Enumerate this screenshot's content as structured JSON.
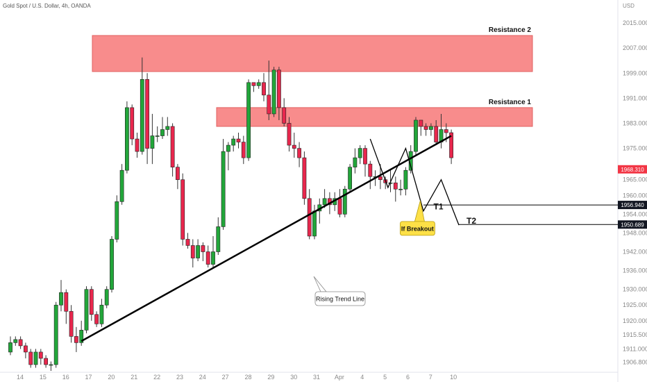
{
  "chart_data": {
    "type": "candlestick",
    "title": "Gold Spot / U.S. Dollar, 4h, OANDA",
    "currency": "USD",
    "ylim": [
      1904,
      2021
    ],
    "y_ticks": [
      "2015.000",
      "2007.000",
      "1999.000",
      "1991.000",
      "1983.000",
      "1975.000",
      "1965.000",
      "1960.000",
      "1954.000",
      "1948.000",
      "1942.000",
      "1936.000",
      "1930.000",
      "1925.000",
      "1920.000",
      "1915.500",
      "1911.000",
      "1906.800"
    ],
    "y_tick_values": [
      2015,
      2007,
      1999,
      1991,
      1983,
      1975,
      1965,
      1960,
      1954,
      1948,
      1942,
      1936,
      1930,
      1925,
      1920,
      1915.5,
      1911,
      1906.8
    ],
    "x_ticks": [
      {
        "label": "14",
        "i": 0
      },
      {
        "label": "15",
        "i": 4.5
      },
      {
        "label": "16",
        "i": 9
      },
      {
        "label": "17",
        "i": 13.5
      },
      {
        "label": "20",
        "i": 18
      },
      {
        "label": "21",
        "i": 22.5
      },
      {
        "label": "22",
        "i": 27
      },
      {
        "label": "23",
        "i": 31.5
      },
      {
        "label": "24",
        "i": 36
      },
      {
        "label": "27",
        "i": 40.5
      },
      {
        "label": "28",
        "i": 45
      },
      {
        "label": "29",
        "i": 49.5
      },
      {
        "label": "30",
        "i": 54
      },
      {
        "label": "31",
        "i": 58.5
      },
      {
        "label": "Apr",
        "i": 63
      },
      {
        "label": "4",
        "i": 67.5
      },
      {
        "label": "5",
        "i": 72
      },
      {
        "label": "6",
        "i": 76.5
      },
      {
        "label": "7",
        "i": 81
      },
      {
        "label": "10",
        "i": 85.5
      }
    ],
    "candles": [
      [
        1910,
        1913,
        1909,
        1915
      ],
      [
        1913,
        1914,
        1912,
        1915
      ],
      [
        1914,
        1912,
        1911,
        1915
      ],
      [
        1912,
        1910,
        1908,
        1913
      ],
      [
        1910,
        1906,
        1905,
        1911
      ],
      [
        1906,
        1910,
        1905,
        1911
      ],
      [
        1910,
        1908,
        1906,
        1911
      ],
      [
        1908,
        1906,
        1905,
        1909
      ],
      [
        1906,
        1906,
        1904,
        1907
      ],
      [
        1906,
        1925,
        1905,
        1926
      ],
      [
        1925,
        1929,
        1923,
        1933
      ],
      [
        1929,
        1923,
        1919,
        1930
      ],
      [
        1923,
        1915,
        1913,
        1925
      ],
      [
        1915,
        1913,
        1910,
        1918
      ],
      [
        1913,
        1917,
        1912,
        1920
      ],
      [
        1917,
        1930,
        1916,
        1931
      ],
      [
        1930,
        1922,
        1920,
        1931
      ],
      [
        1922,
        1919,
        1918,
        1923
      ],
      [
        1919,
        1925,
        1918,
        1927
      ],
      [
        1925,
        1930,
        1924,
        1931
      ],
      [
        1930,
        1946,
        1929,
        1947
      ],
      [
        1946,
        1958,
        1945,
        1960
      ],
      [
        1958,
        1968,
        1957,
        1970
      ],
      [
        1968,
        1988,
        1967,
        1990
      ],
      [
        1988,
        1978,
        1976,
        1989
      ],
      [
        1978,
        1974,
        1972,
        1980
      ],
      [
        1974,
        1997,
        1973,
        2004
      ],
      [
        1997,
        1975,
        1970,
        1999
      ],
      [
        1975,
        1979,
        1970,
        1986
      ],
      [
        1979,
        1979,
        1977,
        1982
      ],
      [
        1979,
        1981,
        1978,
        1985
      ],
      [
        1981,
        1982,
        1979,
        1985
      ],
      [
        1982,
        1969,
        1966,
        1983
      ],
      [
        1969,
        1965,
        1962,
        1970
      ],
      [
        1965,
        1946,
        1944,
        1967
      ],
      [
        1946,
        1944,
        1943,
        1948
      ],
      [
        1944,
        1940,
        1937,
        1946
      ],
      [
        1940,
        1944,
        1939,
        1946
      ],
      [
        1944,
        1942,
        1939,
        1945
      ],
      [
        1942,
        1938,
        1937,
        1944
      ],
      [
        1938,
        1942,
        1937,
        1947
      ],
      [
        1942,
        1950,
        1941,
        1953
      ],
      [
        1950,
        1974,
        1949,
        1978
      ],
      [
        1974,
        1976,
        1968,
        1977
      ],
      [
        1976,
        1978,
        1974,
        1979
      ],
      [
        1978,
        1977,
        1975,
        1980
      ],
      [
        1977,
        1972,
        1970,
        1979
      ],
      [
        1972,
        1996,
        1971,
        1997
      ],
      [
        1996,
        1995,
        1993,
        1996
      ],
      [
        1995,
        1996,
        1994,
        1997
      ],
      [
        1996,
        1992,
        1990,
        1999
      ],
      [
        1992,
        1986,
        1984,
        2003
      ],
      [
        1986,
        2000,
        1985,
        2001
      ],
      [
        2000,
        1988,
        1984,
        2001
      ],
      [
        1988,
        1983,
        1982,
        1991
      ],
      [
        1983,
        1976,
        1974,
        1985
      ],
      [
        1976,
        1975,
        1972,
        1980
      ],
      [
        1975,
        1972,
        1969,
        1977
      ],
      [
        1972,
        1959,
        1957,
        1974
      ],
      [
        1959,
        1947,
        1946,
        1962
      ],
      [
        1947,
        1955,
        1946,
        1957
      ],
      [
        1955,
        1957,
        1951,
        1959
      ],
      [
        1957,
        1959,
        1956,
        1962
      ],
      [
        1959,
        1957,
        1954,
        1961
      ],
      [
        1957,
        1959,
        1955,
        1961
      ],
      [
        1959,
        1954,
        1953,
        1962
      ],
      [
        1954,
        1962,
        1953,
        1963
      ],
      [
        1962,
        1969,
        1961,
        1970
      ],
      [
        1969,
        1972,
        1967,
        1975
      ],
      [
        1972,
        1975,
        1970,
        1976
      ],
      [
        1975,
        1970,
        1966,
        1976
      ],
      [
        1970,
        1966,
        1962,
        1971
      ],
      [
        1966,
        1966,
        1963,
        1968
      ],
      [
        1966,
        1965,
        1962,
        1970
      ],
      [
        1965,
        1964,
        1962,
        1966
      ],
      [
        1964,
        1964,
        1961,
        1968
      ],
      [
        1964,
        1962,
        1958,
        1966
      ],
      [
        1962,
        1962,
        1960,
        1965
      ],
      [
        1962,
        1968,
        1960,
        1969
      ],
      [
        1968,
        1974,
        1967,
        1976
      ],
      [
        1974,
        1984,
        1973,
        1985
      ],
      [
        1984,
        1982,
        1979,
        1984
      ],
      [
        1982,
        1981,
        1979,
        1983
      ],
      [
        1981,
        1982,
        1979,
        1983
      ],
      [
        1982,
        1977,
        1976,
        1984
      ],
      [
        1977,
        1981,
        1975,
        1986
      ],
      [
        1981,
        1980,
        1977,
        1983
      ],
      [
        1980,
        1972,
        1970,
        1981
      ]
    ],
    "zones": [
      {
        "name": "Resistance 2",
        "top": 2011,
        "bottom": 1999.5
      },
      {
        "name": "Resistance 1",
        "top": 1988,
        "bottom": 1982
      }
    ],
    "trendline": {
      "name": "Rising Trend Line",
      "from": {
        "i": 14,
        "y": 1913.5
      },
      "to": {
        "i": 87,
        "y": 1979
      }
    },
    "projection": [
      {
        "i": 71,
        "y": 1978
      },
      {
        "i": 74.5,
        "y": 1962.5
      },
      {
        "i": 78,
        "y": 1975
      },
      {
        "i": 81.5,
        "y": 1955
      },
      {
        "i": 85,
        "y": 1965
      },
      {
        "i": 88.5,
        "y": 1950.5
      }
    ],
    "price_levels": [
      {
        "name": "current",
        "value": "1968.310",
        "y": 1968.31,
        "color": "#f23645"
      },
      {
        "name": "T1",
        "value": "1956.940",
        "y": 1956.94,
        "color": "#131722"
      },
      {
        "name": "T2",
        "value": "1950.689",
        "y": 1950.689,
        "color": "#131722"
      }
    ],
    "targets": [
      {
        "label": "T1",
        "i": 83.5,
        "y": 1955.5
      },
      {
        "label": "T2",
        "i": 90,
        "y": 1951
      }
    ],
    "callout": {
      "text": "If Breakout",
      "i": 78,
      "y": 1955
    }
  }
}
